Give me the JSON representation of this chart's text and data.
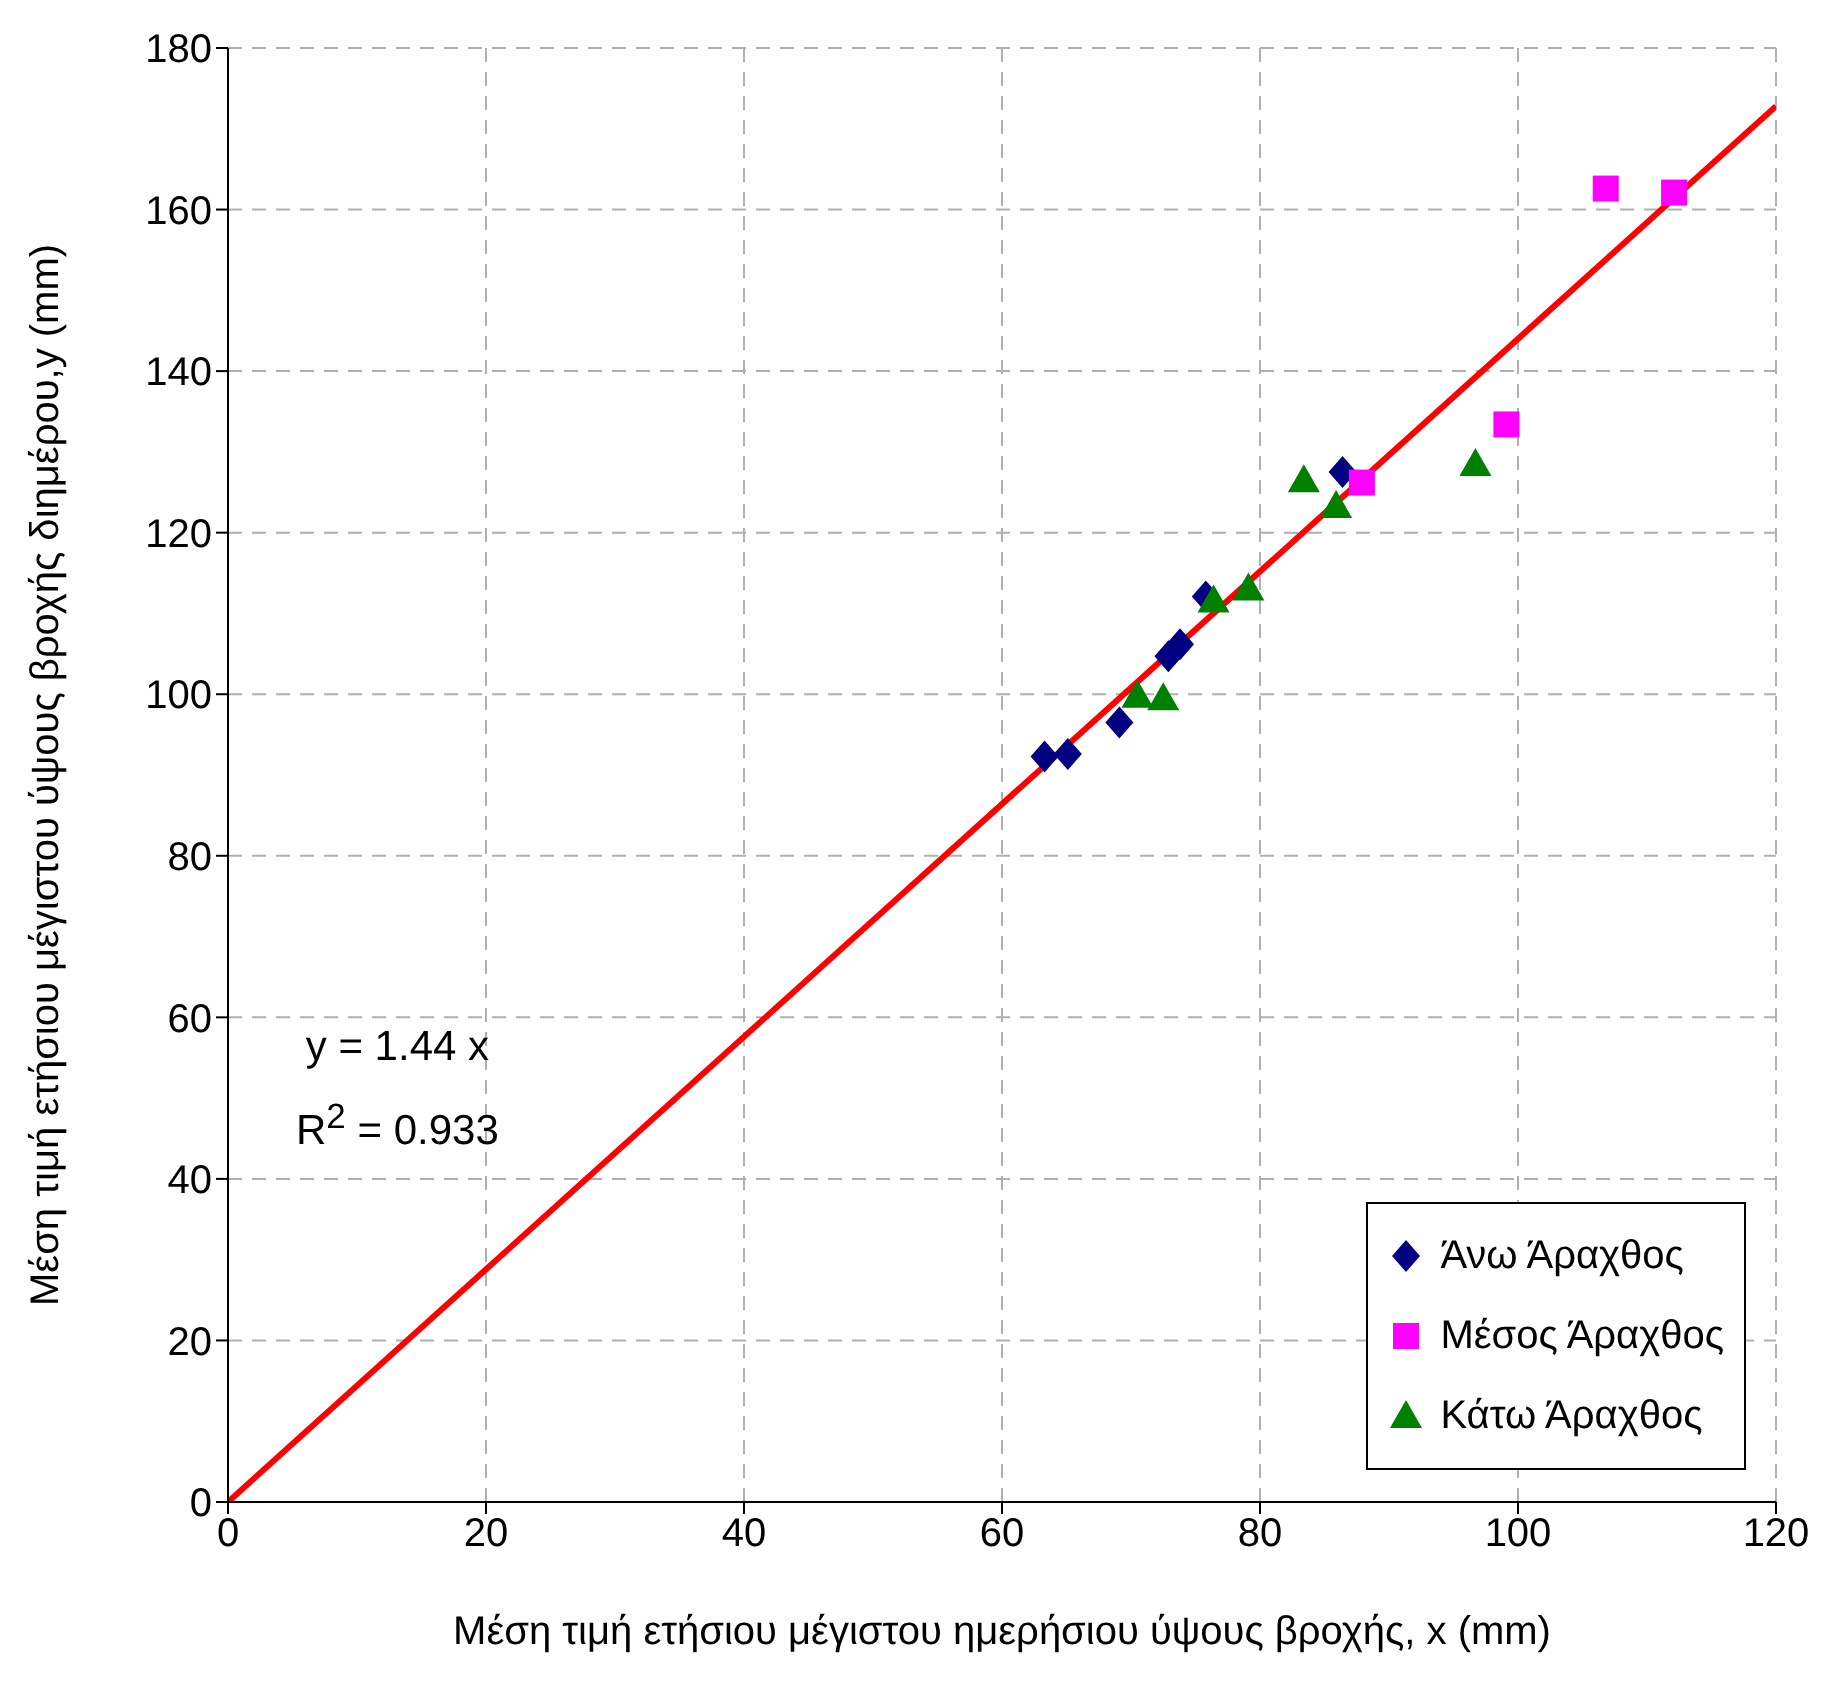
{
  "chart_data": {
    "type": "scatter",
    "xlabel": "Μέση τιμή ετήσιου μέγιστου ημερήσιου ύψους βροχής, x (mm)",
    "ylabel": "Μέση τιμή ετήσιου μέγιστου ύψους βροχής διημέρου,y (mm)",
    "xlim": [
      0,
      120
    ],
    "xticks": [
      0,
      20,
      40,
      60,
      80,
      100,
      120
    ],
    "ylim": [
      0,
      180
    ],
    "yticks": [
      0,
      20,
      40,
      60,
      80,
      100,
      120,
      140,
      160,
      180
    ],
    "grid": true,
    "legend": "bottom right",
    "annotations": [
      "y = 1.44 x",
      "R$^{2}$ = 0.933"
    ],
    "series": [
      {
        "name": "Άνω Άραχθος",
        "color": "#000080",
        "marker": "diamond",
        "x": [
          63.3,
          65.1,
          69.1,
          72.9,
          73.8,
          75.8,
          86.4
        ],
        "values": [
          92.3,
          92.6,
          96.5,
          104.7,
          106.2,
          112.1,
          127.5
        ]
      },
      {
        "name": "Μέσος Άραχθος",
        "color": "#ff00ff",
        "marker": "square",
        "x": [
          87.9,
          99.1,
          106.8,
          112.1
        ],
        "values": [
          126.2,
          133.4,
          162.6,
          162.1
        ]
      },
      {
        "name": "Κάτω Άραχθος",
        "color": "#008000",
        "marker": "triangle",
        "x": [
          70.5,
          72.5,
          76.4,
          79.1,
          83.4,
          85.9,
          96.7
        ],
        "values": [
          99.8,
          99.5,
          111.6,
          113.1,
          126.5,
          123.3,
          128.5
        ]
      },
      {
        "type": "line",
        "color": "#ff0000",
        "marker": "none",
        "line_style": "solid",
        "x": [
          0,
          120
        ],
        "values": [
          0,
          172.8
        ]
      }
    ]
  }
}
